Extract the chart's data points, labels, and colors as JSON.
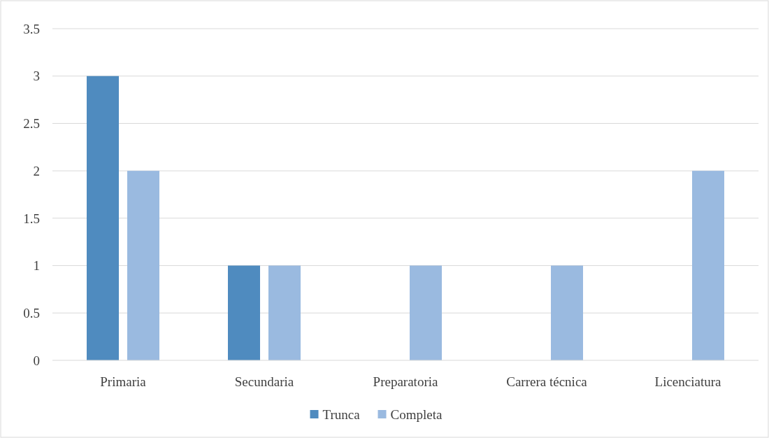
{
  "chart_data": {
    "type": "bar",
    "categories": [
      "Primaria",
      "Secundaria",
      "Preparatoria",
      "Carrera técnica",
      "Licenciatura"
    ],
    "series": [
      {
        "name": "Trunca",
        "color": "#4f8bbf",
        "values": [
          3,
          1,
          0,
          0,
          0
        ]
      },
      {
        "name": "Completa",
        "color": "#9abae0",
        "values": [
          2,
          1,
          1,
          1,
          2
        ]
      }
    ],
    "ylim": [
      0,
      3.5
    ],
    "yticks": [
      0,
      0.5,
      1,
      1.5,
      2,
      2.5,
      3,
      3.5
    ],
    "grid": "y",
    "legend": "bottom"
  }
}
